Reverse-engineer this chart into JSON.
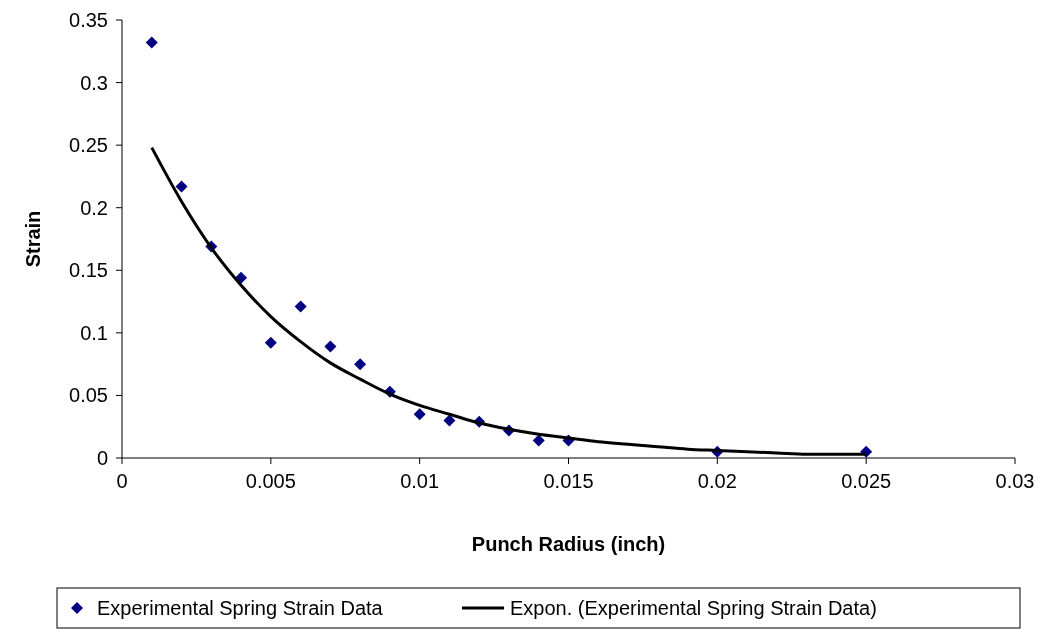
{
  "chart_data": {
    "type": "scatter",
    "xlabel": "Punch Radius (inch)",
    "ylabel": "Strain",
    "xlim": [
      0,
      0.03
    ],
    "xticks": [
      0,
      0.005,
      0.01,
      0.015,
      0.02,
      0.025,
      0.03
    ],
    "ylim": [
      0,
      0.35
    ],
    "yticks": [
      0,
      0.05,
      0.1,
      0.15,
      0.2,
      0.25,
      0.3,
      0.35
    ],
    "grid": false,
    "legend": "bottom",
    "series": [
      {
        "name": "Experimental Spring Strain Data",
        "marker": "diamond",
        "color": "#000080",
        "x": [
          0.001,
          0.002,
          0.003,
          0.004,
          0.005,
          0.006,
          0.007,
          0.008,
          0.009,
          0.01,
          0.011,
          0.012,
          0.013,
          0.014,
          0.015,
          0.02,
          0.025
        ],
        "values": [
          0.332,
          0.217,
          0.169,
          0.144,
          0.092,
          0.121,
          0.089,
          0.075,
          0.053,
          0.035,
          0.03,
          0.029,
          0.022,
          0.014,
          0.014,
          0.005,
          0.005
        ]
      },
      {
        "name": "Expon. (Experimental Spring Strain Data)",
        "type": "line",
        "marker": "none",
        "line_style": "solid",
        "color": "#000000",
        "x": [
          0.001,
          0.002,
          0.003,
          0.004,
          0.005,
          0.006,
          0.007,
          0.008,
          0.009,
          0.01,
          0.011,
          0.012,
          0.013,
          0.014,
          0.015,
          0.016,
          0.017,
          0.018,
          0.019,
          0.02,
          0.021,
          0.022,
          0.023,
          0.024,
          0.025
        ],
        "values": [
          0.248,
          0.205,
          0.168,
          0.138,
          0.113,
          0.093,
          0.076,
          0.063,
          0.051,
          0.042,
          0.035,
          0.028,
          0.023,
          0.019,
          0.016,
          0.013,
          0.011,
          0.009,
          0.007,
          0.006,
          0.005,
          0.004,
          0.003,
          0.003,
          0.003
        ]
      }
    ]
  }
}
